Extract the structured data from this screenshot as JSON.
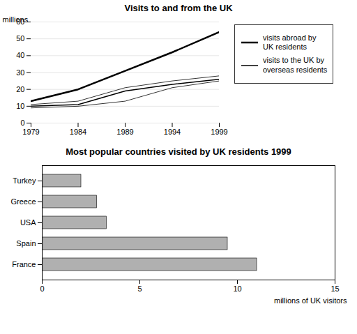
{
  "chart_data": [
    {
      "type": "line",
      "title": "Visits to and from the UK",
      "x": [
        1979,
        1984,
        1989,
        1994,
        1999
      ],
      "series": [
        {
          "color": "black",
          "values": [
            9,
            10,
            13,
            21,
            25
          ]
        },
        {
          "name": "visits to the UK by\noverseas residents",
          "color": "black",
          "values": [
            10,
            11,
            19,
            23,
            26
          ]
        },
        {
          "color": "black",
          "values": [
            11,
            13,
            21,
            25,
            28
          ]
        },
        {
          "name": "visits abroad by\nUK residents",
          "color": "black",
          "values": [
            13,
            20,
            31,
            42,
            54
          ]
        }
      ],
      "ylabel": "millions",
      "xlim": [
        1979,
        1999
      ],
      "xticks": [
        1979,
        1984,
        1989,
        1994,
        1999
      ],
      "ylim": [
        0,
        60
      ],
      "yticks": [
        0,
        10,
        20,
        30,
        40,
        50,
        60
      ],
      "grid": true,
      "legend": "right"
    },
    {
      "type": "bar",
      "orientation": "horizontal",
      "title": "Most popular countries visited by UK residents 1999",
      "categories": [
        "France",
        "Spain",
        "USA",
        "Greece",
        "Turkey"
      ],
      "values": [
        11.0,
        9.5,
        3.3,
        2.8,
        2.0
      ],
      "color": "#b0b0b0",
      "xlabel": "millions of UK visitors",
      "xlim": [
        0,
        15
      ],
      "xticks": [
        0,
        5,
        10,
        15
      ],
      "grid": false
    }
  ]
}
